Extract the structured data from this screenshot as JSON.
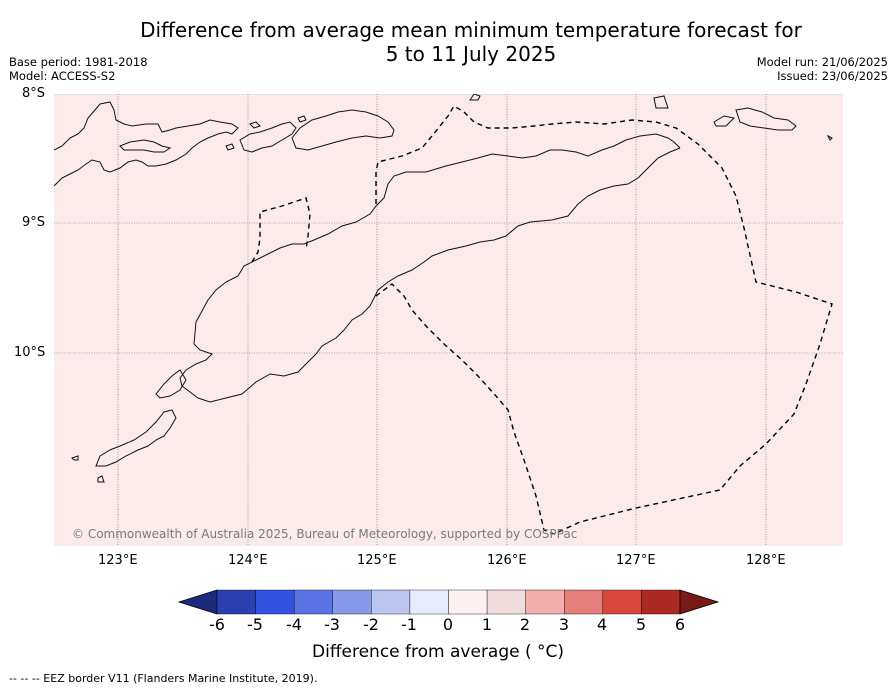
{
  "title": {
    "line1": "Difference from average mean minimum temperature forecast for",
    "line2": "5 to 11 July 2025"
  },
  "meta": {
    "base_period": "Base period: 1981-2018",
    "model": "Model: ACCESS-S2",
    "model_run": "Model run: 21/06/2025",
    "issued": "Issued: 23/06/2025"
  },
  "map": {
    "background_color": "#fbeceb",
    "lat_labels": [
      "8°S",
      "9°S",
      "10°S"
    ],
    "lon_labels": [
      "123°E",
      "124°E",
      "125°E",
      "126°E",
      "127°E",
      "128°E"
    ],
    "copyright": "© Commonwealth of Australia 2025, Bureau of Meteorology, supported by COSPPac"
  },
  "colorbar": {
    "ticks": [
      "-6",
      "-5",
      "-4",
      "-3",
      "-2",
      "-1",
      "0",
      "1",
      "2",
      "3",
      "4",
      "5",
      "6"
    ],
    "colors": [
      "#1b2a7a",
      "#2a3fb0",
      "#3452e0",
      "#5a74e6",
      "#8799e8",
      "#bcc5f2",
      "#e8ebfb",
      "#fdf1f1",
      "#f0dcdc",
      "#efaeab",
      "#e5807a",
      "#d9473d",
      "#ab2a22",
      "#7a1a16"
    ],
    "label": "Difference from average ( °C)"
  },
  "footer": {
    "legend": "--  --  -- EEZ border V11 (Flanders Marine Institute, 2019)."
  }
}
